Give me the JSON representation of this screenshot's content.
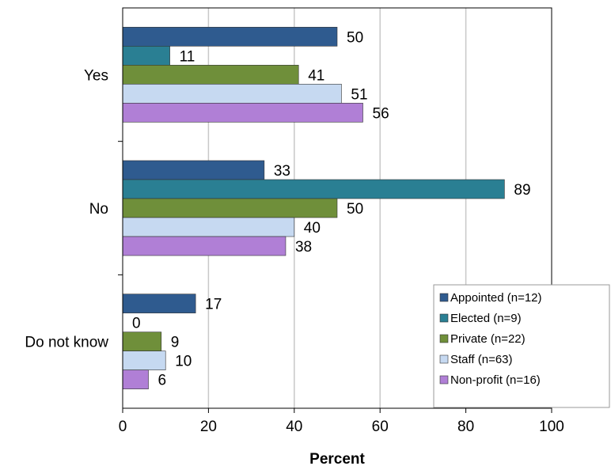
{
  "chart_data": {
    "type": "bar",
    "orientation": "horizontal",
    "categories": [
      "Yes",
      "No",
      "Do not know"
    ],
    "series": [
      {
        "name": "Appointed (n=12)",
        "color": "#2f5b8f",
        "values": [
          50,
          33,
          17
        ]
      },
      {
        "name": "Elected (n=9)",
        "color": "#2a7f93",
        "values": [
          11,
          89,
          0
        ]
      },
      {
        "name": "Private (n=22)",
        "color": "#6f8f3a",
        "values": [
          41,
          50,
          9
        ]
      },
      {
        "name": "Staff (n=63)",
        "color": "#c6d9f1",
        "values": [
          51,
          40,
          10
        ]
      },
      {
        "name": "Non-profit (n=16)",
        "color": "#b07fd6",
        "values": [
          56,
          38,
          6
        ]
      }
    ],
    "xlabel": "Percent",
    "ylabel": "",
    "xlim": [
      0,
      100
    ],
    "xticks": [
      "0",
      "20",
      "40",
      "60",
      "80",
      "100"
    ],
    "grid": "vertical",
    "legend_position": "bottom-right"
  }
}
